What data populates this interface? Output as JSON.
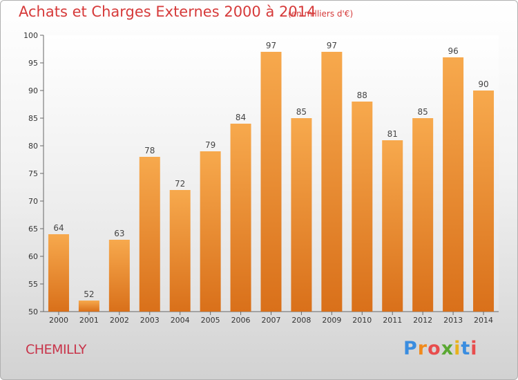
{
  "title": "Achats et Charges Externes 2000 à 2014",
  "unit_note": "(en milliers d'€)",
  "city": "CHEMILLY",
  "logo": "Proxiti",
  "colors": {
    "bar_top": "#f7a94d",
    "bar_bottom": "#d9701a",
    "title": "#d63a3a"
  },
  "chart_data": {
    "type": "bar",
    "title": "Achats et Charges Externes 2000 à 2014",
    "subtitle": "(en milliers d'€)",
    "categories": [
      "2000",
      "2001",
      "2002",
      "2003",
      "2004",
      "2005",
      "2006",
      "2007",
      "2008",
      "2009",
      "2010",
      "2011",
      "2012",
      "2013",
      "2014"
    ],
    "values": [
      64,
      52,
      63,
      78,
      72,
      79,
      84,
      97,
      85,
      97,
      88,
      81,
      85,
      96,
      90
    ],
    "ylim": [
      50,
      100
    ],
    "yticks": [
      50,
      55,
      60,
      65,
      70,
      75,
      80,
      85,
      90,
      95,
      100
    ],
    "grid": false,
    "xlabel": "",
    "ylabel": ""
  }
}
